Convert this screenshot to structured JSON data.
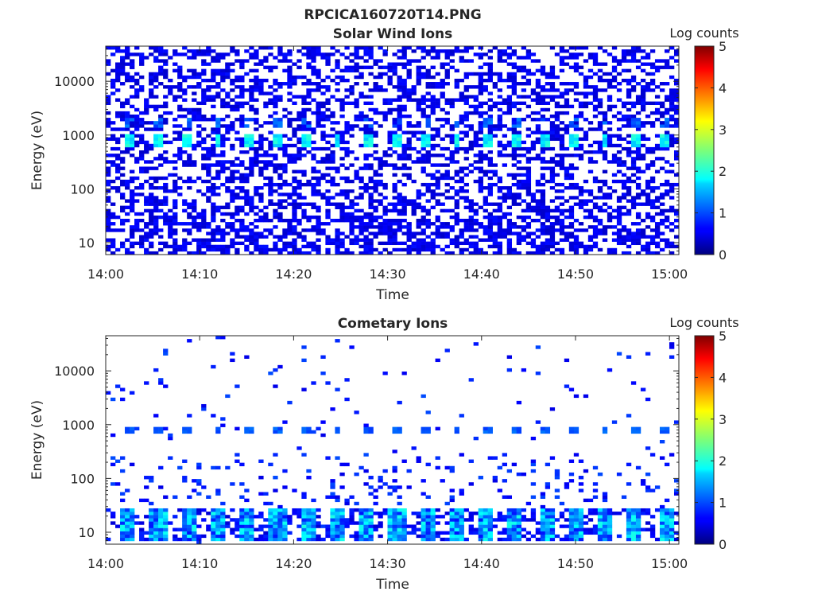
{
  "figure_title": "RPCICA160720T14.PNG",
  "chart_data": [
    {
      "type": "heatmap",
      "title": "Solar Wind Ions",
      "xlabel": "Time",
      "ylabel": "Energy (eV)",
      "x_tick_labels": [
        "14:00",
        "14:10",
        "14:20",
        "14:30",
        "14:40",
        "14:50",
        "15:00"
      ],
      "y_tick_labels": [
        "10",
        "100",
        "1000",
        "10000"
      ],
      "y_scale": "log",
      "ylim": [
        6,
        45000
      ],
      "xlim": [
        "14:00",
        "15:01"
      ],
      "colorbar": {
        "label": "Log counts",
        "ticks": [
          "0",
          "1",
          "2",
          "3",
          "4",
          "5"
        ],
        "range": [
          0,
          5
        ],
        "colormap": "jet"
      },
      "background": "#ffffff",
      "description_of_data": "Sparse low-count (~0.5 log) speckle across all energies; periodic brighter spots (log ~1.5–2) near 800 eV every ~3.2 min; dense low-count band below ~30 eV."
    },
    {
      "type": "heatmap",
      "title": "Cometary Ions",
      "xlabel": "Time",
      "ylabel": "Energy (eV)",
      "x_tick_labels": [
        "14:00",
        "14:10",
        "14:20",
        "14:30",
        "14:40",
        "14:50",
        "15:00"
      ],
      "y_tick_labels": [
        "10",
        "100",
        "1000",
        "10000"
      ],
      "y_scale": "log",
      "ylim": [
        6,
        45000
      ],
      "xlim": [
        "14:00",
        "15:01"
      ],
      "colorbar": {
        "label": "Log counts",
        "ticks": [
          "0",
          "1",
          "2",
          "3",
          "4",
          "5"
        ],
        "range": [
          0,
          5
        ],
        "colormap": "jet"
      },
      "background": "#ffffff",
      "description_of_data": "Sparse counts mostly above 100 eV; periodic spots near 800 eV; columns of counts (log ~1–2) at 7–25 eV roughly every 3.2 min."
    }
  ]
}
